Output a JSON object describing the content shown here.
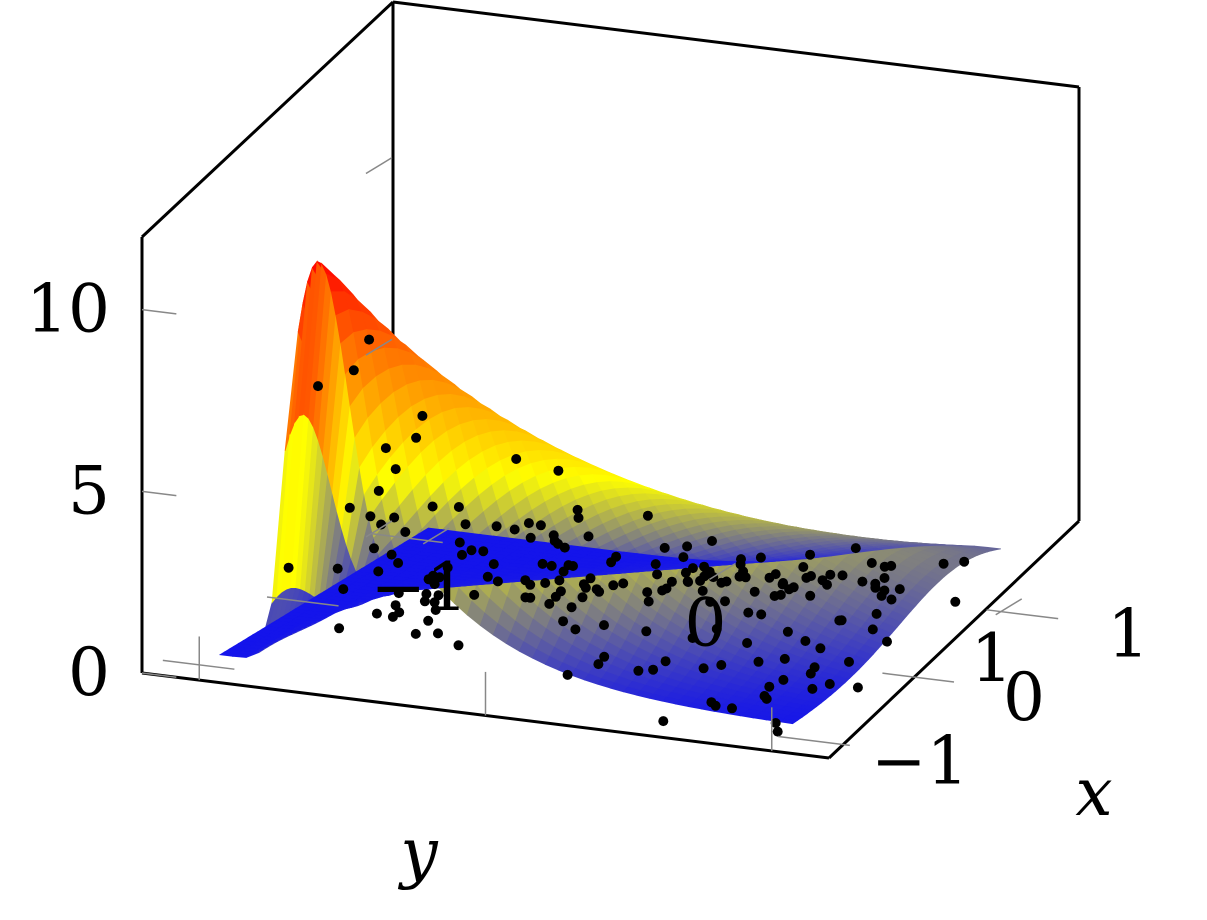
{
  "chart_data": {
    "type": "surface3d+scatter",
    "title": "",
    "xlabel": "x",
    "ylabel": "y",
    "zlabel": "",
    "xlim": [
      -1.2,
      1.2
    ],
    "ylim": [
      -1.2,
      1.2
    ],
    "zlim": [
      0,
      12
    ],
    "x_ticks": [
      {
        "value": -1,
        "label": "−1"
      },
      {
        "value": 0,
        "label": "0"
      },
      {
        "value": 1,
        "label": "1"
      }
    ],
    "y_ticks": [
      {
        "value": -1,
        "label": "−1"
      },
      {
        "value": 0,
        "label": "0"
      },
      {
        "value": 1,
        "label": "1"
      }
    ],
    "z_ticks": [
      {
        "value": 0,
        "label": "0"
      },
      {
        "value": 5,
        "label": "5"
      },
      {
        "value": 10,
        "label": "10"
      }
    ],
    "surface": {
      "colormap": [
        "#0000ff",
        "#ffff00",
        "#ff8000",
        "#ff0000"
      ],
      "x_range": [
        -1,
        1
      ],
      "y_range": [
        -1,
        1
      ],
      "description_points": [
        {
          "x": 1,
          "y": -0.5,
          "z": 0.5
        },
        {
          "x": -1,
          "y": -0.6,
          "z": 11
        },
        {
          "x": 0.5,
          "y": -0.2,
          "z": 5
        },
        {
          "x": 0,
          "y": 0.5,
          "z": 4.5
        },
        {
          "x": -1,
          "y": 1,
          "z": 0.8
        }
      ]
    },
    "scatter": {
      "color": "#000000",
      "count": 200
    },
    "grid": false,
    "legend": "none"
  }
}
